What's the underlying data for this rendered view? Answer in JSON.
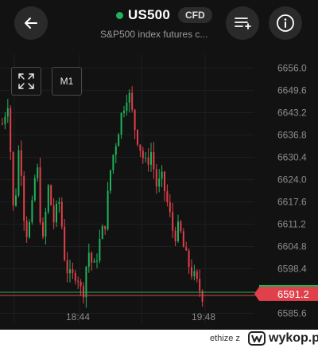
{
  "header": {
    "symbol": "US500",
    "badge": "CFD",
    "subtitle": "S&P500 index futures c...",
    "status_color": "#1fb35a",
    "back_icon": "arrow-left-icon",
    "list_icon": "list-add-icon",
    "info_icon": "info-icon"
  },
  "toolbar": {
    "fullscreen_icon": "expand-icon",
    "timeframe": "M1"
  },
  "chart_data": {
    "type": "candlestick",
    "price_axis": [
      "6656.0",
      "6649.6",
      "6643.2",
      "6636.8",
      "6630.4",
      "6624.0",
      "6617.6",
      "6611.2",
      "6604.8",
      "6598.4",
      "6585.6"
    ],
    "price_axis_values": [
      6656.0,
      6649.6,
      6643.2,
      6636.8,
      6630.4,
      6624.0,
      6617.6,
      6611.2,
      6604.8,
      6598.4,
      6585.6
    ],
    "ylim": [
      6582.5,
      6660.0
    ],
    "time_axis": [
      "18:44",
      "19:48"
    ],
    "current_price": "6591.2",
    "current_price_value": 6591.2,
    "up_color": "#1fb35a",
    "down_color": "#e0404a",
    "close_path": [
      6640,
      6647,
      6612,
      6636,
      6608,
      6612,
      6630,
      6604,
      6622,
      6612,
      6618,
      6600,
      6595,
      6598,
      6590,
      6604,
      6598,
      6606,
      6612,
      6628,
      6636,
      6644,
      6650,
      6640,
      6634,
      6628,
      6632,
      6622,
      6624,
      6616,
      6608,
      6610,
      6602,
      6598,
      6594,
      6591
    ]
  },
  "footer": {
    "user": "ethize z",
    "brand": "wykop.pl",
    "brand_icon": "wykop-logo-icon"
  }
}
